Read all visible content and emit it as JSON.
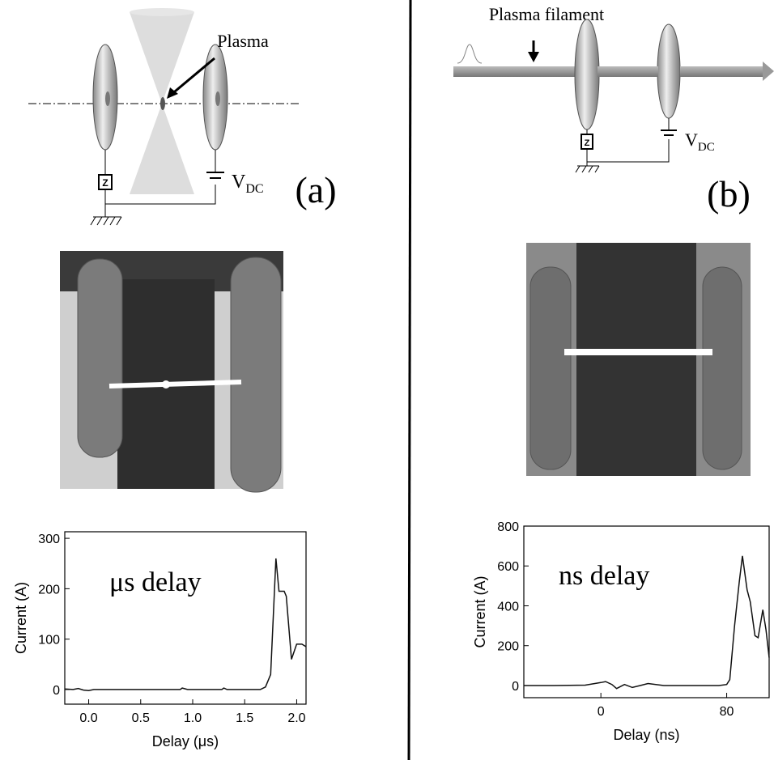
{
  "diagram_a": {
    "plasma_label": "Plasma",
    "z_label": "Z",
    "voltage_label": "V",
    "voltage_subscript": "DC",
    "panel_label": "(a)"
  },
  "diagram_b": {
    "filament_label": "Plasma filament",
    "z_label": "Z",
    "voltage_label": "V",
    "voltage_subscript": "DC",
    "panel_label": "(b)"
  },
  "chart_data": [
    {
      "type": "line",
      "annotation": "μs delay",
      "x_label": "Delay (μs)",
      "y_label": "Current (A)",
      "xlim": [
        -0.23,
        2.09
      ],
      "ylim": [
        -29,
        313
      ],
      "xticks": [
        {
          "value": 0,
          "label": "0.0"
        },
        0.5,
        {
          "value": 1,
          "label": "1.0"
        },
        1.5,
        {
          "value": 2,
          "label": "2.0"
        }
      ],
      "yticks": [
        0,
        100,
        200,
        300
      ],
      "series": [
        {
          "color": "#111111",
          "x": [
            -0.23,
            -0.15,
            -0.1,
            -0.05,
            0,
            0.05,
            0.5,
            0.88,
            0.9,
            0.95,
            1.28,
            1.3,
            1.33,
            1.65,
            1.7,
            1.75,
            1.8,
            1.83,
            1.88,
            1.9,
            1.95,
            2.0,
            2.05,
            2.09
          ],
          "values": [
            1,
            0,
            2,
            -1,
            -2,
            0,
            0,
            0,
            3,
            0,
            0,
            3,
            0,
            0,
            5,
            30,
            260,
            195,
            195,
            185,
            60,
            90,
            90,
            85
          ]
        }
      ]
    },
    {
      "type": "line",
      "annotation": "ns delay",
      "x_label": "Delay (ns)",
      "y_label": "Current (A)",
      "xlim": [
        -49,
        107
      ],
      "ylim": [
        -61,
        800
      ],
      "xticks": [
        0,
        80
      ],
      "yticks": [
        0,
        200,
        400,
        600,
        800
      ],
      "series": [
        {
          "color": "#111111",
          "x": [
            -49,
            -30,
            -10,
            0,
            3,
            7,
            10,
            15,
            20,
            25,
            30,
            40,
            60,
            75,
            80,
            82,
            85,
            88,
            90,
            93,
            95,
            98,
            100,
            103,
            105,
            107
          ],
          "values": [
            0,
            0,
            2,
            15,
            20,
            5,
            -15,
            5,
            -10,
            0,
            10,
            0,
            0,
            0,
            5,
            30,
            300,
            520,
            650,
            480,
            420,
            250,
            240,
            380,
            280,
            140
          ]
        }
      ]
    }
  ]
}
